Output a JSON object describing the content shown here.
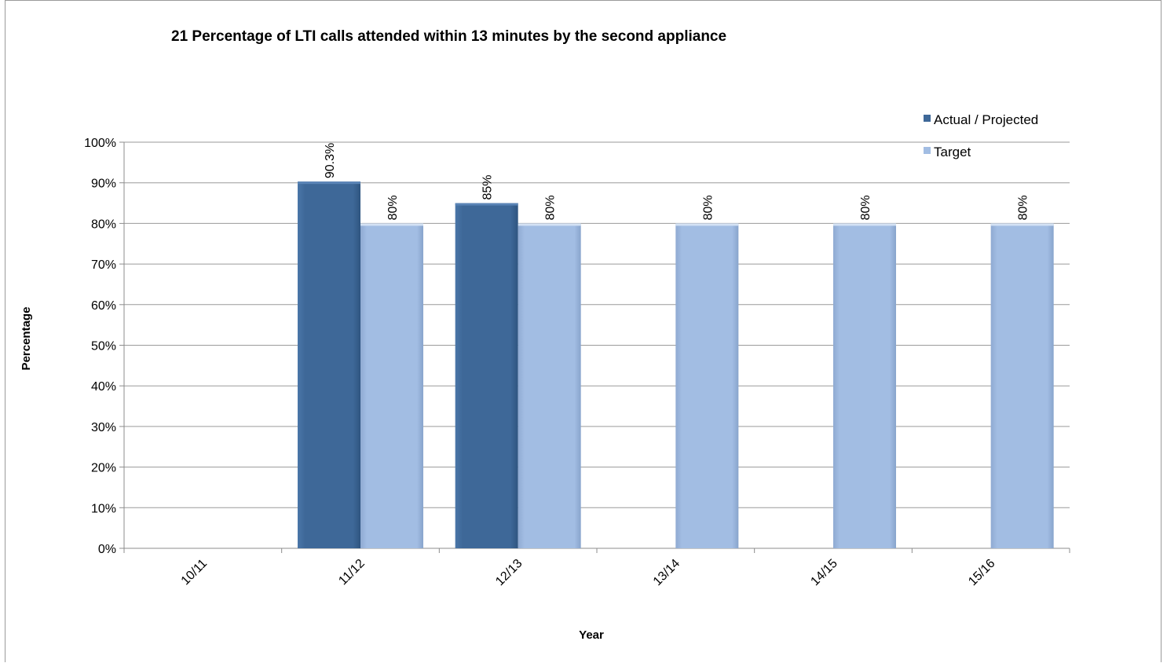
{
  "chart_data": {
    "type": "bar",
    "title": "21 Percentage of LTI calls attended within 13 minutes by the second appliance",
    "xlabel": "Year",
    "ylabel": "Percentage",
    "categories": [
      "10/11",
      "11/12",
      "12/13",
      "13/14",
      "14/15",
      "15/16"
    ],
    "series": [
      {
        "name": "Actual / Projected",
        "values": [
          null,
          90.3,
          85,
          null,
          null,
          null
        ],
        "labels": [
          null,
          "90.3%",
          "85%",
          null,
          null,
          null
        ],
        "color": "#3e6898"
      },
      {
        "name": "Target",
        "values": [
          null,
          80,
          80,
          80,
          80,
          80
        ],
        "labels": [
          null,
          "80%",
          "80%",
          "80%",
          "80%",
          "80%"
        ],
        "color": "#a2bde3"
      }
    ],
    "ylim": [
      0,
      100
    ],
    "yticks": [
      "0%",
      "10%",
      "20%",
      "30%",
      "40%",
      "50%",
      "60%",
      "70%",
      "80%",
      "90%",
      "100%"
    ],
    "grid": true,
    "legend_position": "top-right"
  }
}
